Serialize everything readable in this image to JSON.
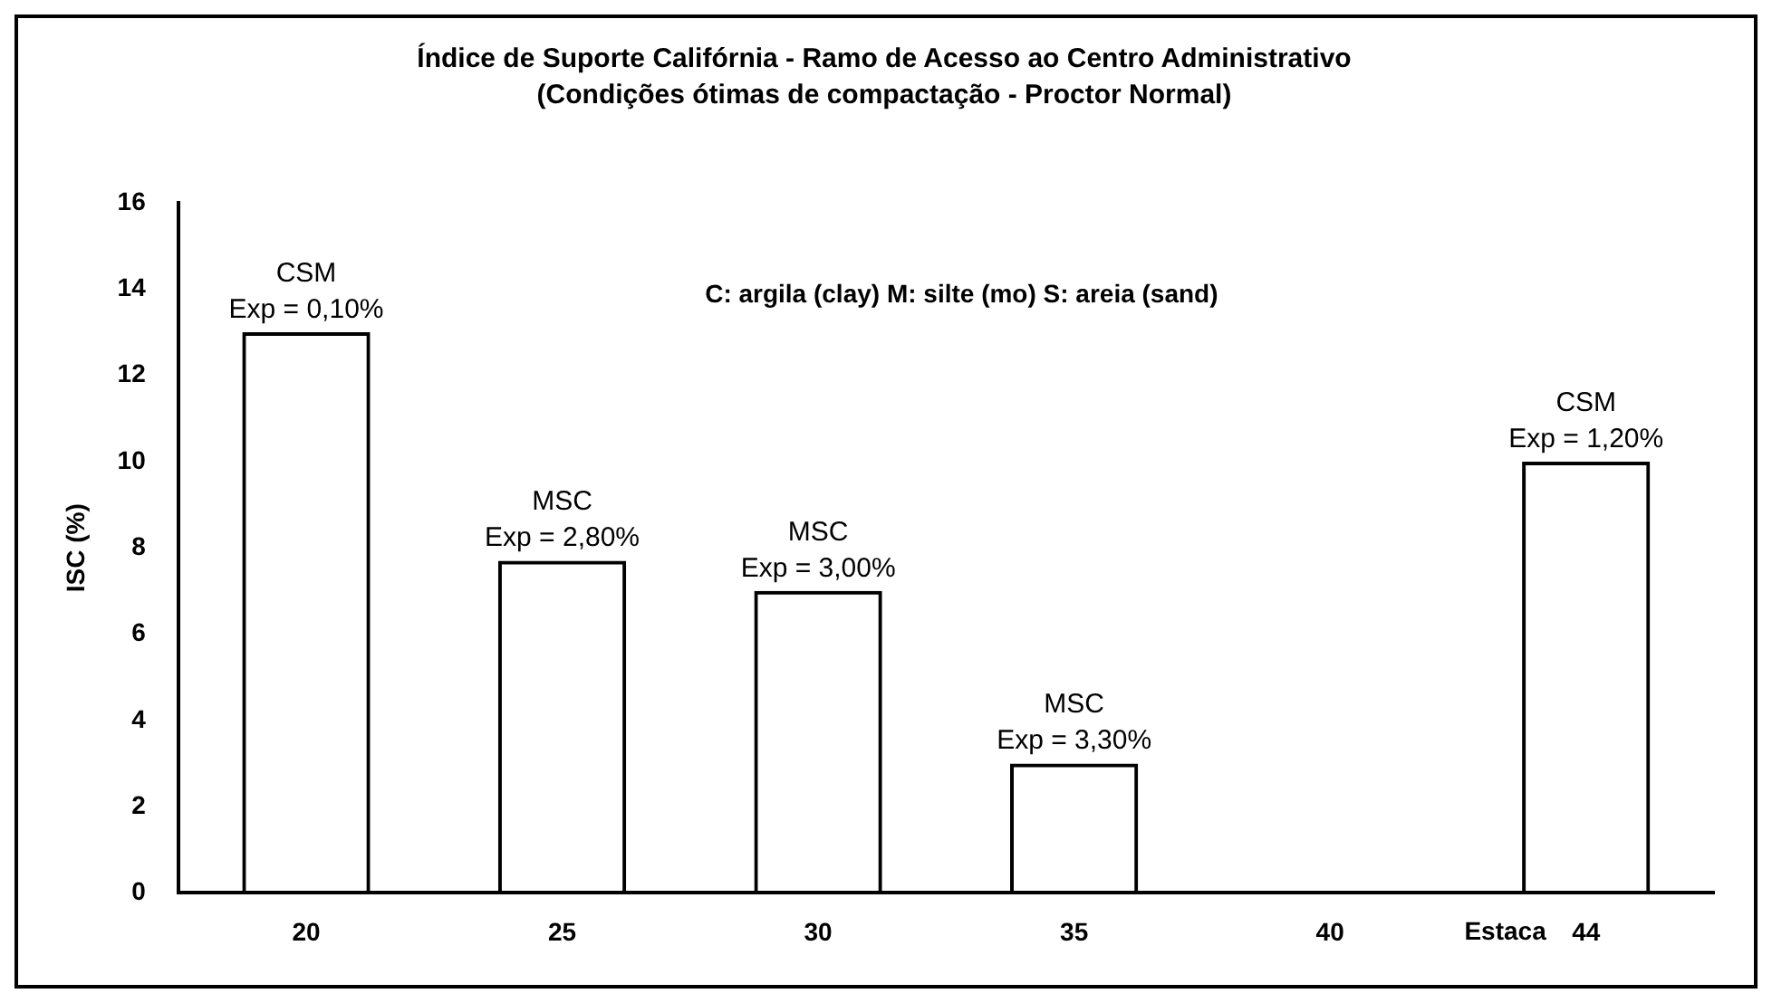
{
  "chart_data": {
    "type": "bar",
    "title": "Índice de Suporte Califórnia - Ramo de Acesso ao Centro Administrativo",
    "subtitle": "(Condições ótimas de compactação - Proctor Normal)",
    "xlabel": "Estaca",
    "ylabel": "ISC (%)",
    "categories": [
      "20",
      "25",
      "30",
      "35",
      "40",
      "44"
    ],
    "values": [
      13,
      7.7,
      7,
      3,
      null,
      10
    ],
    "color": "#000000",
    "ylim": [
      0,
      16
    ],
    "yticks": [
      0,
      2,
      4,
      6,
      8,
      10,
      12,
      14,
      16
    ],
    "grid": false,
    "legend": false,
    "annotations": [
      {
        "text": "CSM\nExp = 0,10%",
        "x": "20",
        "y": 13
      },
      {
        "text": "MSC\nExp = 2,80%",
        "x": "25",
        "y": 7.7
      },
      {
        "text": "MSC\nExp = 3,00%",
        "x": "30",
        "y": 7
      },
      {
        "text": "MSC\nExp = 3,30%",
        "x": "35",
        "y": 3
      },
      {
        "text": "CSM\nExp = 1,20%",
        "x": "44",
        "y": 10
      },
      "C: argila (clay) M: silte (mo) S: areia (sand)"
    ]
  }
}
